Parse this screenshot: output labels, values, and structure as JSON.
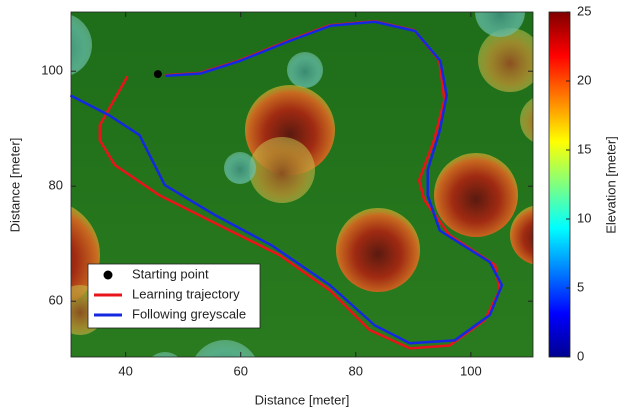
{
  "chart_data": {
    "type": "line",
    "xlabel": "Distance [meter]",
    "ylabel": "Distance [meter]",
    "xlim": [
      30.5,
      110.8
    ],
    "ylim": [
      50.3,
      110.3
    ],
    "xticks": [
      40,
      60,
      80,
      100
    ],
    "yticks": [
      60,
      80,
      100
    ],
    "grid": false,
    "legend": "lower left",
    "series": [
      {
        "name": "Starting point",
        "type": "scatter",
        "color": "#000000",
        "x": [
          45.6
        ],
        "values": [
          99.5
        ]
      },
      {
        "name": "Learning trajectory",
        "color": "#e8141a",
        "x": [
          40.3,
          35.5,
          35.5,
          38.1,
          45.9,
          56.3,
          66.8,
          75.5,
          82.4,
          89.4,
          96.3,
          102.4,
          105,
          104.2,
          96.3,
          91.9,
          91,
          93.6,
          95.4,
          94.5,
          90.2,
          83.3,
          75.5,
          68.5,
          59.8,
          52.9,
          46.8
        ],
        "values": [
          99.1,
          90.6,
          88,
          83.7,
          78.4,
          73.2,
          68,
          61.9,
          55,
          51.8,
          52.3,
          56.7,
          61.9,
          66.3,
          71.5,
          77.6,
          81,
          88,
          95,
          101.9,
          107.1,
          108.7,
          108,
          105.4,
          101.9,
          99.7,
          99.3
        ]
      },
      {
        "name": "Following greyscale",
        "color": "#1428e0",
        "x": [
          30.4,
          37.2,
          42.4,
          46.8,
          55.5,
          65.4,
          75.5,
          83.3,
          89.4,
          97.2,
          103.3,
          105.4,
          103.3,
          94.6,
          92.5,
          92.5,
          94.6,
          95.8,
          94.7,
          90.3,
          83.3,
          75.6,
          68.6,
          59.9,
          53,
          46.9
        ],
        "values": [
          95.8,
          92.3,
          88.9,
          80.2,
          75,
          69.7,
          62.8,
          55.8,
          52.7,
          53.2,
          57.6,
          62.8,
          66.8,
          72.3,
          78.4,
          82.8,
          89.7,
          95.8,
          101.8,
          107,
          108.6,
          107.9,
          105.3,
          101.8,
          99.6,
          99.2
        ]
      }
    ],
    "colorbar": {
      "label": "Elevation [meter]",
      "lim": [
        0,
        25
      ],
      "ticks": [
        0,
        5,
        10,
        15,
        20,
        25
      ]
    }
  }
}
